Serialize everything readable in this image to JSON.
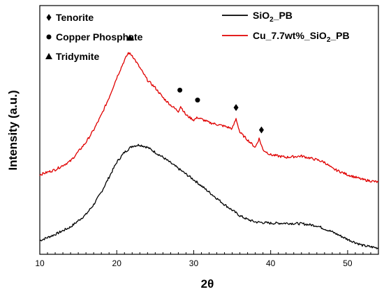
{
  "chart_data": {
    "type": "line",
    "xlabel": "2θ",
    "ylabel": "Intensity (a.u.)",
    "xlim": [
      10,
      54
    ],
    "ylim": [
      0,
      100
    ],
    "xticks": [
      10,
      20,
      30,
      40,
      50
    ],
    "y_tick_labels": false,
    "grid": false,
    "legend": {
      "placement": "top-right",
      "entries": [
        {
          "label": "SiO",
          "sub": "2",
          "tail": "_PB",
          "color": "#000000"
        },
        {
          "label": "Cu_7.7wt%_SiO",
          "sub": "2",
          "tail": "_PB",
          "color": "#e00000"
        }
      ]
    },
    "marker_legend": {
      "placement": "top-left",
      "entries": [
        {
          "symbol": "diamond",
          "label": "Tenorite"
        },
        {
          "symbol": "circle",
          "label": "Copper Phosphate"
        },
        {
          "symbol": "triangle",
          "label": "Tridymite"
        }
      ]
    },
    "series": [
      {
        "name": "SiO2_PB",
        "color": "#000000",
        "x": [
          10,
          12,
          14,
          16,
          17,
          18,
          19,
          20,
          21,
          22,
          23,
          24,
          25,
          26,
          28,
          30,
          32,
          34,
          36,
          37,
          38,
          40,
          42,
          44,
          46,
          48,
          50,
          52,
          54
        ],
        "y": [
          5.5,
          8,
          11,
          16,
          20,
          25,
          31,
          37,
          41,
          43.5,
          44,
          43,
          41,
          39,
          34.5,
          30,
          25,
          20,
          15.5,
          14,
          13,
          12.5,
          12.5,
          12.3,
          11.5,
          9,
          6,
          3.5,
          2.5
        ]
      },
      {
        "name": "Cu_7.7wt%_SiO2_PB",
        "color": "#e00000",
        "x": [
          10,
          12,
          14,
          16,
          17,
          18,
          19,
          20,
          21,
          21.5,
          22,
          23,
          24,
          25,
          26,
          27,
          28,
          28.3,
          29,
          30,
          30.5,
          32,
          34,
          35,
          35.5,
          36,
          37,
          38,
          38.5,
          39,
          40,
          42,
          44,
          46,
          47,
          48,
          50,
          52,
          54
        ],
        "y": [
          32,
          34,
          37.5,
          45,
          50,
          56,
          63,
          71,
          78,
          81,
          80,
          75,
          70,
          67,
          63,
          60,
          57.5,
          59.5,
          56,
          54,
          55,
          53,
          51.5,
          50.5,
          54.5,
          49,
          46,
          43,
          46.5,
          42,
          40,
          39,
          39.5,
          38,
          37,
          34.5,
          32,
          30,
          29
        ]
      }
    ],
    "annotations": [
      {
        "symbol": "triangle",
        "x": 21.7,
        "y": 87
      },
      {
        "symbol": "circle",
        "x": 28.2,
        "y": 66
      },
      {
        "symbol": "circle",
        "x": 30.5,
        "y": 62
      },
      {
        "symbol": "diamond",
        "x": 35.5,
        "y": 59
      },
      {
        "symbol": "diamond",
        "x": 38.8,
        "y": 50
      }
    ]
  }
}
